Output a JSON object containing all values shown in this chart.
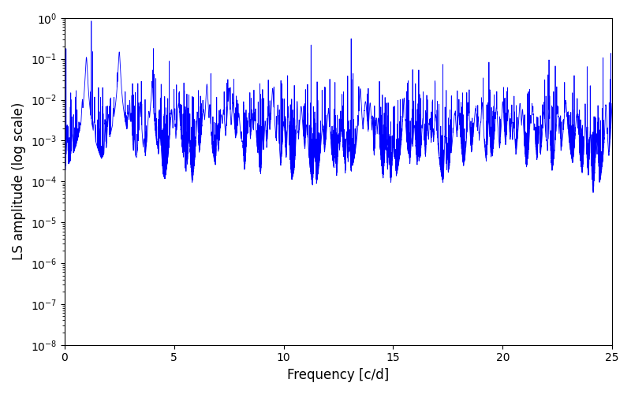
{
  "title": "",
  "xlabel": "Frequency [c/d]",
  "ylabel": "LS amplitude (log scale)",
  "xlim": [
    0,
    25
  ],
  "ylim": [
    1e-08,
    1.0
  ],
  "line_color": "#0000ff",
  "background_color": "#ffffff",
  "figsize": [
    8.0,
    5.0
  ],
  "dpi": 100,
  "seed": 12345,
  "n_points": 8000,
  "freq_max": 25.0,
  "base_log_amplitude": -4.0,
  "noise_std": 1.0,
  "peak_frequencies": [
    1.0,
    2.5,
    4.0,
    6.5,
    7.5,
    9.5,
    13.5,
    15.5,
    20.0,
    22.5
  ],
  "peak_amplitudes": [
    0.11,
    0.15,
    0.025,
    0.025,
    0.02,
    0.02,
    0.02,
    0.012,
    0.01,
    0.008
  ],
  "peak_widths": [
    0.04,
    0.04,
    0.04,
    0.04,
    0.04,
    0.04,
    0.04,
    0.04,
    0.04,
    0.04
  ]
}
